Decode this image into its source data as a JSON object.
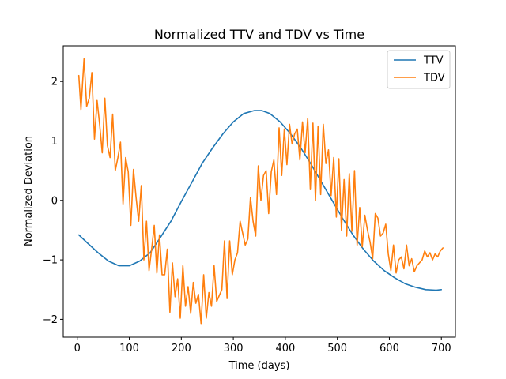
{
  "chart_data": {
    "type": "line",
    "title": "Normalized TTV and TDV vs Time",
    "xlabel": "Time (days)",
    "ylabel": "Normalized Deviation",
    "xlim": [
      -27,
      727
    ],
    "ylim": [
      -2.3,
      2.6
    ],
    "xticks": [
      0,
      100,
      200,
      300,
      400,
      500,
      600,
      700
    ],
    "xtick_labels": [
      "0",
      "100",
      "200",
      "300",
      "400",
      "500",
      "600",
      "700"
    ],
    "yticks": [
      -2,
      -1,
      0,
      1,
      2
    ],
    "ytick_labels": [
      "−2",
      "−1",
      "0",
      "1",
      "2"
    ],
    "grid": false,
    "legend": {
      "position": "top-right"
    },
    "series": [
      {
        "name": "TTV",
        "color": "#1f77b4",
        "x": [
          3,
          20,
          40,
          60,
          80,
          100,
          120,
          140,
          160,
          180,
          200,
          220,
          240,
          260,
          280,
          300,
          320,
          340,
          355,
          370,
          390,
          410,
          430,
          450,
          470,
          490,
          510,
          530,
          550,
          570,
          590,
          610,
          630,
          650,
          670,
          690,
          700
        ],
        "values": [
          -0.58,
          -0.72,
          -0.88,
          -1.02,
          -1.1,
          -1.1,
          -1.02,
          -0.88,
          -0.62,
          -0.35,
          -0.02,
          0.3,
          0.62,
          0.88,
          1.12,
          1.32,
          1.46,
          1.51,
          1.51,
          1.46,
          1.32,
          1.12,
          0.88,
          0.6,
          0.3,
          0.0,
          -0.3,
          -0.58,
          -0.82,
          -1.02,
          -1.18,
          -1.3,
          -1.4,
          -1.46,
          -1.5,
          -1.51,
          -1.5
        ]
      },
      {
        "name": "TDV",
        "color": "#ff7f0e",
        "x": [
          3,
          7,
          13,
          18,
          23,
          28,
          33,
          38,
          43,
          48,
          53,
          58,
          63,
          68,
          73,
          78,
          83,
          88,
          93,
          98,
          103,
          108,
          113,
          118,
          123,
          128,
          133,
          138,
          143,
          148,
          153,
          158,
          163,
          168,
          173,
          178,
          183,
          188,
          193,
          198,
          203,
          208,
          213,
          218,
          223,
          228,
          233,
          238,
          243,
          248,
          253,
          258,
          263,
          268,
          273,
          278,
          283,
          288,
          293,
          298,
          303,
          308,
          313,
          318,
          323,
          328,
          333,
          338,
          343,
          348,
          353,
          358,
          363,
          368,
          373,
          378,
          383,
          388,
          393,
          398,
          403,
          408,
          413,
          418,
          423,
          428,
          433,
          438,
          443,
          448,
          453,
          458,
          463,
          468,
          473,
          478,
          483,
          488,
          493,
          498,
          503,
          508,
          513,
          518,
          523,
          528,
          533,
          538,
          543,
          548,
          553,
          558,
          563,
          568,
          573,
          578,
          583,
          588,
          593,
          598,
          603,
          608,
          613,
          618,
          623,
          628,
          633,
          638,
          643,
          648,
          653,
          658,
          663,
          668,
          673,
          678,
          683,
          688,
          693,
          698,
          703
        ],
        "values": [
          2.1,
          1.53,
          2.38,
          1.58,
          1.72,
          2.15,
          1.03,
          1.68,
          1.28,
          0.8,
          1.72,
          0.92,
          0.72,
          1.45,
          0.5,
          0.72,
          0.98,
          -0.06,
          0.72,
          0.48,
          -0.42,
          0.52,
          0.05,
          -0.35,
          0.25,
          -1.0,
          -0.35,
          -1.18,
          -0.82,
          -0.42,
          -1.22,
          -0.58,
          -1.25,
          -1.25,
          -0.82,
          -1.88,
          -1.05,
          -1.62,
          -1.32,
          -1.98,
          -1.1,
          -1.78,
          -1.45,
          -1.9,
          -1.38,
          -1.73,
          -1.58,
          -2.07,
          -1.25,
          -1.98,
          -1.55,
          -1.78,
          -1.1,
          -1.7,
          -1.6,
          -1.5,
          -0.68,
          -1.65,
          -0.68,
          -1.25,
          -1.0,
          -0.88,
          -0.35,
          -0.55,
          -0.75,
          -0.65,
          0.05,
          -0.35,
          -0.6,
          0.58,
          0.0,
          0.42,
          0.5,
          -0.22,
          0.48,
          0.68,
          0.1,
          1.22,
          0.42,
          1.2,
          0.6,
          1.28,
          0.95,
          1.12,
          1.2,
          0.68,
          1.32,
          0.8,
          1.38,
          0.18,
          1.3,
          0.0,
          1.25,
          0.1,
          1.28,
          0.62,
          0.85,
          0.08,
          0.72,
          -0.28,
          0.7,
          -0.5,
          0.35,
          -0.6,
          0.45,
          -0.52,
          0.5,
          -0.75,
          -0.12,
          -0.78,
          -0.25,
          -0.5,
          -0.7,
          -0.98,
          -0.22,
          -0.3,
          -0.6,
          -0.55,
          -0.4,
          -0.9,
          -1.18,
          -0.75,
          -1.22,
          -1.0,
          -0.95,
          -1.15,
          -0.75,
          -1.1,
          -0.98,
          -1.2,
          -1.1,
          -1.05,
          -1.0,
          -0.85,
          -0.95,
          -0.88,
          -1.0,
          -0.9,
          -0.95,
          -0.85,
          -0.8
        ]
      }
    ]
  }
}
